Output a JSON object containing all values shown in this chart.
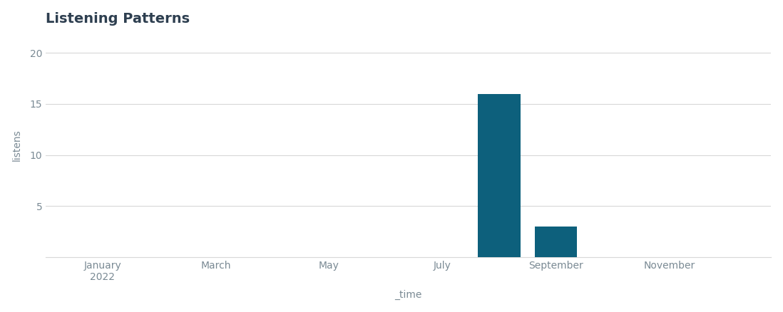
{
  "title": "Listening Patterns",
  "xlabel": "_time",
  "ylabel": "listens",
  "background_color": "#ffffff",
  "bar_color": "#0d607c",
  "tick_labels": [
    "January\n2022",
    "March",
    "May",
    "July",
    "September",
    "November"
  ],
  "tick_positions": [
    1,
    3,
    5,
    7,
    9,
    11
  ],
  "bar_positions": [
    8,
    9
  ],
  "bar_values": [
    16,
    3
  ],
  "bar_width": 0.75,
  "xlim": [
    0.0,
    12.8
  ],
  "ylim": [
    0,
    22
  ],
  "yticks": [
    5,
    10,
    15,
    20
  ],
  "title_fontsize": 14,
  "axis_label_fontsize": 10,
  "tick_fontsize": 10,
  "title_color": "#2e3f50",
  "axis_color": "#7a8a94",
  "grid_color": "#d8d8d8"
}
